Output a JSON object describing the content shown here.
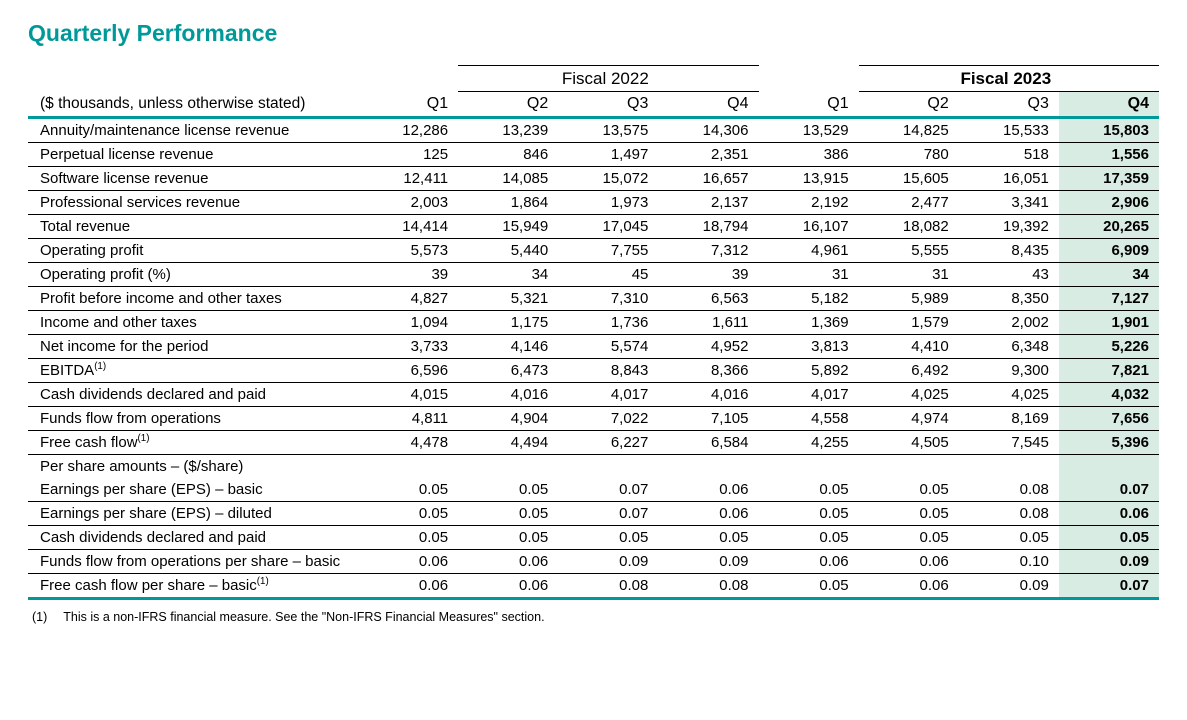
{
  "title": "Quarterly Performance",
  "colors": {
    "accent": "#009999",
    "highlight_bg": "#d9ece4",
    "text": "#000000",
    "background": "#ffffff"
  },
  "table": {
    "subtitle": "($ thousands, unless otherwise stated)",
    "fiscal_headers": [
      "Fiscal 2022",
      "Fiscal 2023"
    ],
    "quarters": [
      "Q1",
      "Q2",
      "Q3",
      "Q4",
      "Q1",
      "Q2",
      "Q3",
      "Q4"
    ],
    "highlight_column_index": 7,
    "rows": [
      {
        "label": "Annuity/maintenance license revenue",
        "values": [
          "12,286",
          "13,239",
          "13,575",
          "14,306",
          "13,529",
          "14,825",
          "15,533",
          "15,803"
        ],
        "underline": true
      },
      {
        "label": "Perpetual license revenue",
        "values": [
          "125",
          "846",
          "1,497",
          "2,351",
          "386",
          "780",
          "518",
          "1,556"
        ],
        "underline": true
      },
      {
        "label": "Software license revenue",
        "values": [
          "12,411",
          "14,085",
          "15,072",
          "16,657",
          "13,915",
          "15,605",
          "16,051",
          "17,359"
        ],
        "underline": true
      },
      {
        "label": "Professional services revenue",
        "values": [
          "2,003",
          "1,864",
          "1,973",
          "2,137",
          "2,192",
          "2,477",
          "3,341",
          "2,906"
        ],
        "underline": true
      },
      {
        "label": "Total revenue",
        "values": [
          "14,414",
          "15,949",
          "17,045",
          "18,794",
          "16,107",
          "18,082",
          "19,392",
          "20,265"
        ],
        "underline": true
      },
      {
        "label": "Operating profit",
        "values": [
          "5,573",
          "5,440",
          "7,755",
          "7,312",
          "4,961",
          "5,555",
          "8,435",
          "6,909"
        ],
        "underline": true
      },
      {
        "label": "Operating profit (%)",
        "values": [
          "39",
          "34",
          "45",
          "39",
          "31",
          "31",
          "43",
          "34"
        ],
        "underline": true
      },
      {
        "label": "Profit before income and other taxes",
        "values": [
          "4,827",
          "5,321",
          "7,310",
          "6,563",
          "5,182",
          "5,989",
          "8,350",
          "7,127"
        ],
        "underline": true
      },
      {
        "label": "Income and other taxes",
        "values": [
          "1,094",
          "1,175",
          "1,736",
          "1,611",
          "1,369",
          "1,579",
          "2,002",
          "1,901"
        ],
        "underline": true
      },
      {
        "label": "Net income for the period",
        "values": [
          "3,733",
          "4,146",
          "5,574",
          "4,952",
          "3,813",
          "4,410",
          "6,348",
          "5,226"
        ],
        "underline": true
      },
      {
        "label": "EBITDA",
        "sup": "(1)",
        "values": [
          "6,596",
          "6,473",
          "8,843",
          "8,366",
          "5,892",
          "6,492",
          "9,300",
          "7,821"
        ],
        "underline": true
      },
      {
        "label": "Cash dividends declared and paid",
        "values": [
          "4,015",
          "4,016",
          "4,017",
          "4,016",
          "4,017",
          "4,025",
          "4,025",
          "4,032"
        ],
        "underline": true
      },
      {
        "label": "Funds flow from operations",
        "values": [
          "4,811",
          "4,904",
          "7,022",
          "7,105",
          "4,558",
          "4,974",
          "8,169",
          "7,656"
        ],
        "underline": true
      },
      {
        "label": "Free cash flow",
        "sup": "(1)",
        "values": [
          "4,478",
          "4,494",
          "6,227",
          "6,584",
          "4,255",
          "4,505",
          "7,545",
          "5,396"
        ],
        "underline": true
      },
      {
        "label": "Per share amounts – ($/share)",
        "values": [
          "",
          "",
          "",
          "",
          "",
          "",
          "",
          ""
        ],
        "underline": false
      },
      {
        "label": "Earnings per share (EPS) – basic",
        "values": [
          "0.05",
          "0.05",
          "0.07",
          "0.06",
          "0.05",
          "0.05",
          "0.08",
          "0.07"
        ],
        "underline": true
      },
      {
        "label": "Earnings per share (EPS) – diluted",
        "values": [
          "0.05",
          "0.05",
          "0.07",
          "0.06",
          "0.05",
          "0.05",
          "0.08",
          "0.06"
        ],
        "underline": true
      },
      {
        "label": "Cash dividends declared and paid",
        "values": [
          "0.05",
          "0.05",
          "0.05",
          "0.05",
          "0.05",
          "0.05",
          "0.05",
          "0.05"
        ],
        "underline": true
      },
      {
        "label": "Funds flow from operations per share – basic",
        "values": [
          "0.06",
          "0.06",
          "0.09",
          "0.09",
          "0.06",
          "0.06",
          "0.10",
          "0.09"
        ],
        "underline": true
      },
      {
        "label": "Free cash flow per share – basic",
        "sup": "(1)",
        "values": [
          "0.06",
          "0.06",
          "0.08",
          "0.08",
          "0.05",
          "0.06",
          "0.09",
          "0.07"
        ],
        "underline": true,
        "last": true
      }
    ]
  },
  "footnote": {
    "marker": "(1)",
    "text": "This is a non-IFRS financial measure. See the \"Non-IFRS Financial Measures\" section."
  }
}
